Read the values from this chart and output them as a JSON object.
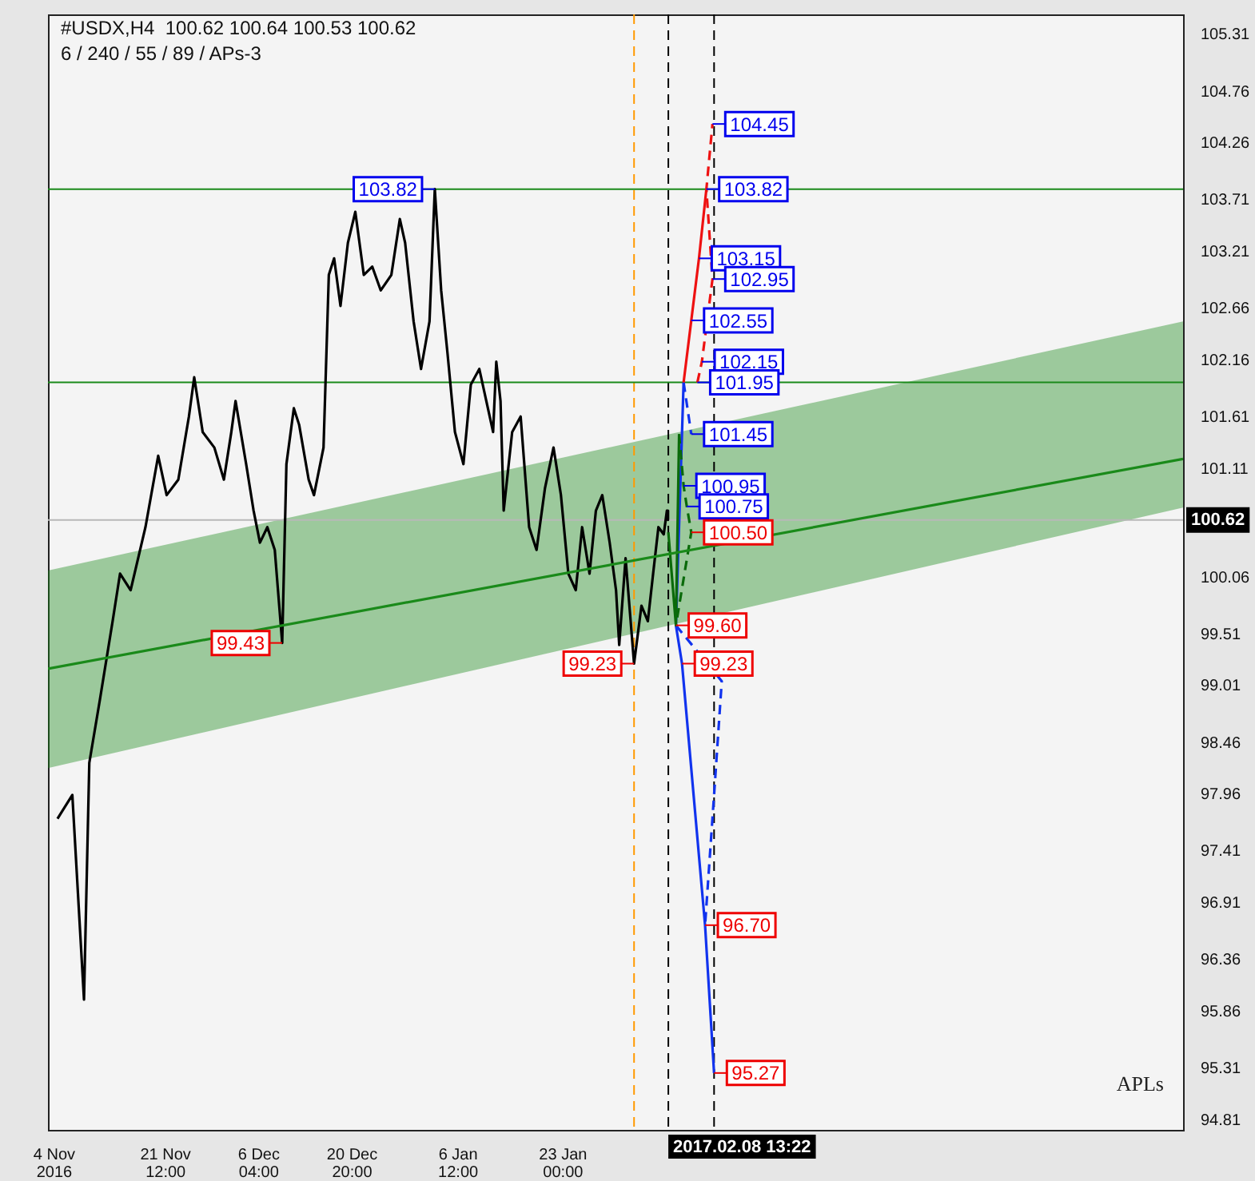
{
  "chart_data": {
    "type": "line",
    "title": "#USDX,H4  100.62 100.64 100.53 100.62",
    "subtitle": "6 / 240 / 55 / 89 / APs-3",
    "xlim": [
      "2016-11-03T00:00",
      "2017-04-30T12:00"
    ],
    "ylim": [
      94.72,
      105.51
    ],
    "xticks": [
      {
        "value": "2016-11-04T00:00",
        "label": "4 Nov 2016"
      },
      {
        "value": "2016-11-21T12:00",
        "label": "21 Nov 12:00"
      },
      {
        "value": "2016-12-06T04:00",
        "label": "6 Dec 04:00"
      },
      {
        "value": "2016-12-20T20:00",
        "label": "20 Dec 20:00"
      },
      {
        "value": "2017-01-06T12:00",
        "label": "6 Jan 12:00"
      },
      {
        "value": "2017-01-23T00:00",
        "label": "23 Jan 00:00"
      }
    ],
    "yticks": [
      94.81,
      95.31,
      95.86,
      96.36,
      96.91,
      97.41,
      97.96,
      98.46,
      99.01,
      99.51,
      100.06,
      101.11,
      101.61,
      102.16,
      102.66,
      103.21,
      103.71,
      104.26,
      104.76,
      105.31
    ],
    "series": [
      {
        "type": "line",
        "color": "#1a8a1a",
        "x": [
          "2016-11-03T00:00",
          "2017-04-30T12:00"
        ],
        "values": [
          99.18,
          101.21
        ],
        "lower": [
          98.22,
          100.74
        ],
        "upper": [
          100.13,
          102.54
        ]
      },
      {
        "type": "line",
        "color": "#000000",
        "x": [
          "2016-11-04T12:00",
          "2016-11-06T20:00",
          "2016-11-08T16:00",
          "2016-11-09T12:00",
          "2016-11-11T04:00",
          "2016-11-13T04:00",
          "2016-11-14T08:00",
          "2016-11-16T00:00",
          "2016-11-18T08:00",
          "2016-11-20T08:00",
          "2016-11-21T16:00",
          "2016-11-23T12:00",
          "2016-11-25T04:00",
          "2016-11-26T00:00",
          "2016-11-27T08:00",
          "2016-11-29T04:00",
          "2016-11-30T16:00",
          "2016-12-01T20:00",
          "2016-12-02T12:00",
          "2016-12-04T04:00",
          "2016-12-05T08:00",
          "2016-12-06T08:00",
          "2016-12-07T12:00",
          "2016-12-08T16:00",
          "2016-12-09T20:00",
          "2016-12-10T12:00",
          "2016-12-11T16:00",
          "2016-12-12T12:00",
          "2016-12-14T00:00",
          "2016-12-14T20:00",
          "2016-12-16T08:00",
          "2016-12-17T04:00",
          "2016-12-18T00:00",
          "2016-12-19T00:00",
          "2016-12-20T04:00",
          "2016-12-21T08:00",
          "2016-12-22T16:00",
          "2016-12-24T00:00",
          "2016-12-25T08:00",
          "2016-12-27T00:00",
          "2016-12-28T08:00",
          "2016-12-29T04:00",
          "2016-12-30T12:00",
          "2016-12-31T16:00",
          "2017-01-02T00:00",
          "2017-01-02T20:00",
          "2017-01-03T20:00",
          "2017-01-04T20:00",
          "2017-01-06T00:00",
          "2017-01-07T08:00",
          "2017-01-08T12:00",
          "2017-01-09T20:00",
          "2017-01-12T00:00",
          "2017-01-12T12:00",
          "2017-01-13T04:00",
          "2017-01-13T16:00",
          "2017-01-15T00:00",
          "2017-01-16T08:00",
          "2017-01-17T16:00",
          "2017-01-18T20:00",
          "2017-01-20T04:00",
          "2017-01-21T12:00",
          "2017-01-22T16:00",
          "2017-01-23T20:00",
          "2017-01-25T00:00",
          "2017-01-26T00:00",
          "2017-01-27T04:00",
          "2017-01-28T04:00",
          "2017-01-29T04:00",
          "2017-01-30T08:00",
          "2017-01-31T08:00",
          "2017-01-31T20:00",
          "2017-02-01T20:00",
          "2017-02-03T04:00",
          "2017-02-04T08:00",
          "2017-02-05T08:00",
          "2017-02-06T04:00",
          "2017-02-07T00:00",
          "2017-02-07T20:00",
          "2017-02-08T08:00",
          "2017-02-08T12:00"
        ],
        "values": [
          97.73,
          97.96,
          95.98,
          98.27,
          98.88,
          99.64,
          100.1,
          99.94,
          100.55,
          101.24,
          100.86,
          101.01,
          101.62,
          102.0,
          101.47,
          101.32,
          101.01,
          101.47,
          101.77,
          101.16,
          100.71,
          100.4,
          100.55,
          100.33,
          99.43,
          101.16,
          101.7,
          101.54,
          101.01,
          100.86,
          101.32,
          102.99,
          103.15,
          102.69,
          103.3,
          103.6,
          102.99,
          103.07,
          102.84,
          102.99,
          103.53,
          103.3,
          102.54,
          102.08,
          102.54,
          103.82,
          102.84,
          102.23,
          101.47,
          101.16,
          101.93,
          102.08,
          101.47,
          102.15,
          101.77,
          100.71,
          101.47,
          101.62,
          100.55,
          100.33,
          100.93,
          101.32,
          100.86,
          100.1,
          99.94,
          100.55,
          100.1,
          100.71,
          100.86,
          100.4,
          99.94,
          99.41,
          100.25,
          99.23,
          99.79,
          99.64,
          100.1,
          100.55,
          100.48,
          100.71,
          100.62
        ]
      },
      {
        "type": "line",
        "color": "#0a6a0a",
        "x": [
          "2017-02-08T13:22",
          "2017-02-09T18:00",
          "2017-02-10T06:00"
        ],
        "values": [
          100.5,
          99.6,
          101.45
        ]
      },
      {
        "type": "line",
        "color": "#0a6a0a",
        "line_style": "dashed",
        "x": [
          "2017-02-10T06:00",
          "2017-02-10T23:00",
          "2017-02-11T11:00",
          "2017-02-12T04:00",
          "2017-02-09T18:00"
        ],
        "values": [
          101.45,
          100.95,
          100.75,
          100.5,
          99.6
        ]
      },
      {
        "type": "line",
        "color": "#ee1111",
        "x": [
          "2017-02-10T23:00",
          "2017-02-12T04:00",
          "2017-02-13T09:00",
          "2017-02-14T13:00"
        ],
        "values": [
          101.95,
          102.55,
          103.15,
          103.82
        ]
      },
      {
        "type": "line",
        "color": "#ee1111",
        "line_style": "dashed",
        "x": [
          "2017-02-13T03:00",
          "2017-02-13T20:00",
          "2017-02-15T12:00",
          "2017-02-14T13:00",
          "2017-02-15T12:00"
        ],
        "values": [
          101.95,
          102.15,
          102.95,
          103.82,
          104.45
        ]
      },
      {
        "type": "line",
        "color": "#1133ee",
        "x": [
          "2017-02-10T23:00",
          "2017-02-09T18:00",
          "2017-02-10T17:00",
          "2017-02-14T08:00",
          "2017-02-15T18:00"
        ],
        "values": [
          101.95,
          99.6,
          99.23,
          96.7,
          95.27
        ]
      },
      {
        "type": "line",
        "color": "#1133ee",
        "line_style": "dashed",
        "x": [
          "2017-02-10T23:00",
          "2017-02-12T04:00"
        ],
        "values": [
          101.95,
          101.45
        ]
      },
      {
        "type": "line",
        "color": "#1133ee",
        "line_style": "dashed",
        "x": [
          "2017-02-09T18:00",
          "2017-02-16T23:00",
          "2017-02-15T18:00",
          "2017-02-14T08:00"
        ],
        "values": [
          99.6,
          99.06,
          97.96,
          96.7
        ]
      }
    ],
    "ref_lines": [
      {
        "axis": "x",
        "value": "2017-02-08T13:22",
        "label": "2017.02.08 13:22",
        "color": "#000000",
        "line_style": "dashed"
      },
      {
        "axis": "x",
        "value": "2017-02-15T18:00",
        "color": "#000000",
        "line_style": "dashed"
      },
      {
        "axis": "x",
        "value": "2017-02-03T04:00",
        "color": "#ff9900",
        "line_style": "dashed"
      },
      {
        "axis": "y",
        "value": 103.82,
        "color": "#1a8a1a",
        "line_style": "solid"
      },
      {
        "axis": "y",
        "value": 101.95,
        "color": "#1a8a1a",
        "line_style": "solid"
      },
      {
        "axis": "y",
        "value": 100.62,
        "label": "100.62",
        "color": "#b8b8b8",
        "line_style": "solid"
      }
    ],
    "annotations": [
      {
        "text": "104.45",
        "x": "2017-02-15T12:00",
        "y": 104.45
      },
      {
        "text": "103.82",
        "x": "2017-02-14T13:00",
        "y": 103.82
      },
      {
        "text": "103.15",
        "x": "2017-02-13T09:00",
        "y": 103.15
      },
      {
        "text": "102.95",
        "x": "2017-02-15T12:00",
        "y": 102.95
      },
      {
        "text": "102.55",
        "x": "2017-02-12T04:00",
        "y": 102.55
      },
      {
        "text": "102.15",
        "x": "2017-02-13T20:00",
        "y": 102.15
      },
      {
        "text": "101.95",
        "x": "2017-02-13T03:00",
        "y": 101.95
      },
      {
        "text": "101.45",
        "x": "2017-02-12T04:00",
        "y": 101.45
      },
      {
        "text": "100.95",
        "x": "2017-02-10T23:00",
        "y": 100.95
      },
      {
        "text": "100.75",
        "x": "2017-02-11T11:00",
        "y": 100.75
      },
      {
        "text": "100.50",
        "x": "2017-02-12T04:00",
        "y": 100.5
      },
      {
        "text": "99.60",
        "x": "2017-02-09T18:00",
        "y": 99.6
      },
      {
        "text": "99.23",
        "x": "2017-02-10T17:00",
        "y": 99.23
      },
      {
        "text": "96.70",
        "x": "2017-02-14T08:00",
        "y": 96.7
      },
      {
        "text": "95.27",
        "x": "2017-02-15T18:00",
        "y": 95.27
      },
      {
        "text": "103.82",
        "x": "2017-01-02T20:00",
        "y": 103.82
      },
      {
        "text": "99.43",
        "x": "2016-12-09T20:00",
        "y": 99.43
      },
      {
        "text": "99.23",
        "x": "2017-02-03T04:00",
        "y": 99.23
      },
      "APLs"
    ]
  }
}
